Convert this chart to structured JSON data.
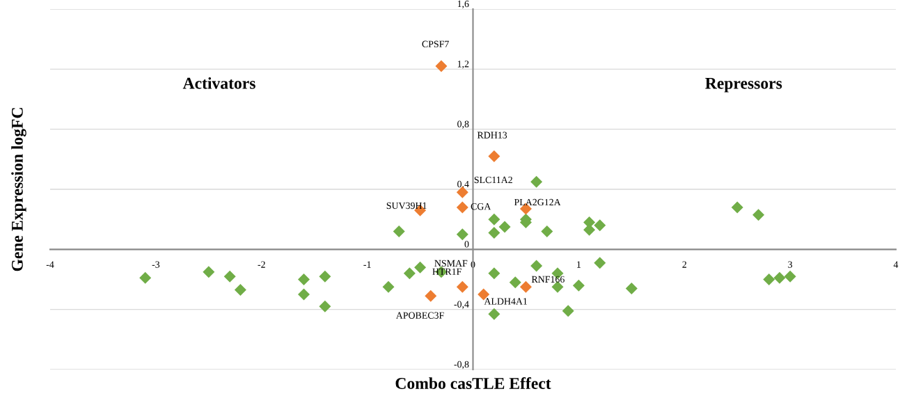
{
  "chart_data": {
    "type": "scatter",
    "xlabel": "Combo casTLE Effect",
    "ylabel": "Gene Expression logFC",
    "xlim": [
      -4,
      4
    ],
    "ylim": [
      -0.8,
      1.6
    ],
    "xticks": [
      -4,
      -3,
      -2,
      -1,
      0,
      1,
      2,
      3,
      4
    ],
    "yticks": [
      {
        "value": -0.8,
        "label": "-0,8"
      },
      {
        "value": -0.4,
        "label": "-0,4"
      },
      {
        "value": 0,
        "label": "0"
      },
      {
        "value": 0.4,
        "label": "0,4"
      },
      {
        "value": 0.8,
        "label": "0,8"
      },
      {
        "value": 1.2,
        "label": "1,2"
      },
      {
        "value": 1.6,
        "label": "1,6"
      }
    ],
    "grid": "y",
    "marker": "diamond",
    "legend": false,
    "series": [
      {
        "color": "#70ad47",
        "x": [
          -3.1,
          -2.5,
          -2.3,
          -2.2,
          -1.6,
          -1.4,
          -1.6,
          -1.4,
          -0.8,
          -0.7,
          -0.6,
          -0.5,
          -0.3,
          -0.1,
          0.2,
          0.2,
          0.3,
          0.2,
          0.2,
          0.4,
          0.5,
          0.5,
          0.6,
          0.6,
          0.7,
          0.8,
          0.8,
          0.9,
          1.0,
          1.1,
          1.1,
          1.2,
          1.2,
          1.5,
          2.5,
          2.7,
          2.8,
          2.9,
          3.0
        ],
        "values": [
          -0.19,
          -0.15,
          -0.18,
          -0.27,
          -0.2,
          -0.18,
          -0.3,
          -0.38,
          -0.25,
          0.12,
          -0.16,
          -0.12,
          -0.15,
          0.1,
          0.2,
          0.11,
          0.15,
          -0.16,
          -0.43,
          -0.22,
          0.2,
          0.18,
          0.45,
          -0.11,
          0.12,
          -0.16,
          -0.25,
          -0.41,
          -0.24,
          0.18,
          0.13,
          0.16,
          -0.09,
          -0.26,
          0.28,
          0.23,
          -0.2,
          -0.19,
          -0.18
        ]
      },
      {
        "color": "#ed7d31",
        "x": [
          -0.3,
          0.2,
          -0.1,
          -0.1,
          -0.5,
          0.5,
          -0.1,
          -0.4,
          0.1,
          0.5
        ],
        "values": [
          1.22,
          0.62,
          0.38,
          0.28,
          0.26,
          0.27,
          -0.25,
          -0.31,
          -0.3,
          -0.25
        ]
      }
    ],
    "annotations": [
      "Activators",
      "Repressors",
      {
        "text": "CPSF7",
        "x": -0.3,
        "y": 1.22
      },
      {
        "text": "RDH13",
        "x": 0.2,
        "y": 0.62
      },
      {
        "text": "SLC11A2",
        "x": -0.1,
        "y": 0.38
      },
      {
        "text": "CGA",
        "x": -0.1,
        "y": 0.28
      },
      {
        "text": "SUV39H1",
        "x": -0.5,
        "y": 0.26
      },
      {
        "text": "PLA2G12A",
        "x": 0.5,
        "y": 0.27
      },
      {
        "text": "NSMAF",
        "x": -0.3,
        "y": -0.15
      },
      {
        "text": "HTR1F",
        "x": -0.1,
        "y": -0.25
      },
      {
        "text": "APOBEC3F",
        "x": -0.4,
        "y": -0.31
      },
      {
        "text": "ALDH4A1",
        "x": 0.1,
        "y": -0.3
      },
      {
        "text": "RNF166",
        "x": 0.5,
        "y": -0.25
      }
    ]
  }
}
